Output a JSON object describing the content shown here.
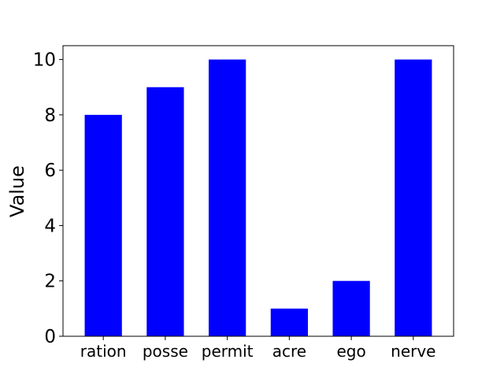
{
  "chart_data": {
    "type": "bar",
    "categories": [
      "ration",
      "posse",
      "permit",
      "acre",
      "ego",
      "nerve"
    ],
    "values": [
      8,
      9,
      10,
      1,
      2,
      10
    ],
    "title": "",
    "xlabel": "",
    "ylabel": "Value",
    "ylim": [
      0,
      10.5
    ],
    "yticks": [
      "0",
      "2",
      "4",
      "6",
      "8",
      "10"
    ],
    "bar_color": "#0000ff",
    "grid": false,
    "legend": "none"
  }
}
